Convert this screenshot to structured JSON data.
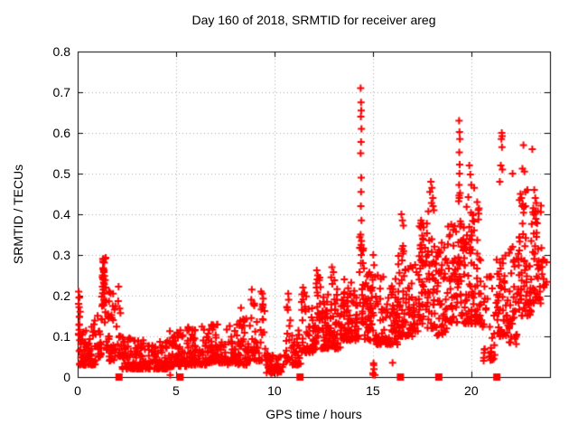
{
  "chart_data": {
    "type": "scatter",
    "title": "Day 160 of 2018, SRMTID for receiver areg",
    "xlabel": "GPS time / hours",
    "ylabel": "SRMTID / TECUs",
    "xlim": [
      0,
      24
    ],
    "ylim": [
      0,
      0.8
    ],
    "xticks": [
      0,
      5,
      10,
      15,
      20
    ],
    "xtick_labels": [
      "0",
      "5",
      "10",
      "15",
      "20"
    ],
    "yticks": [
      0,
      0.1,
      0.2,
      0.3,
      0.4,
      0.5,
      0.6,
      0.7,
      0.8
    ],
    "ytick_labels": [
      "0",
      "0.1",
      "0.2",
      "0.3",
      "0.4",
      "0.5",
      "0.6",
      "0.7",
      "0.8"
    ],
    "grid": "dotted",
    "grid_color": "#aaaaaa",
    "axis_color": "#000000",
    "legend": "none",
    "series": [
      {
        "name": "SRMTID",
        "marker": "plus",
        "color": "#ff0000",
        "notable_points": [
          [
            4.7,
            0.005
          ],
          [
            0.05,
            0.21
          ],
          [
            0.07,
            0.195
          ],
          [
            1.28,
            0.29
          ],
          [
            1.31,
            0.282
          ],
          [
            1.3,
            0.268
          ],
          [
            1.33,
            0.258
          ],
          [
            1.27,
            0.25
          ],
          [
            1.29,
            0.242
          ],
          [
            1.32,
            0.232
          ],
          [
            1.26,
            0.222
          ],
          [
            1.3,
            0.215
          ],
          [
            1.35,
            0.205
          ],
          [
            1.8,
            0.205
          ],
          [
            2.08,
            0.222
          ],
          [
            8.3,
            0.17
          ],
          [
            8.85,
            0.215
          ],
          [
            8.82,
            0.19
          ],
          [
            9.32,
            0.21
          ],
          [
            9.38,
            0.205
          ],
          [
            9.43,
            0.193
          ],
          [
            10.7,
            0.205
          ],
          [
            10.72,
            0.19
          ],
          [
            10.68,
            0.165
          ],
          [
            11.45,
            0.22
          ],
          [
            11.52,
            0.208
          ],
          [
            12.15,
            0.262
          ],
          [
            12.2,
            0.25
          ],
          [
            12.18,
            0.24
          ],
          [
            12.92,
            0.27
          ],
          [
            13.0,
            0.258
          ],
          [
            12.88,
            0.245
          ],
          [
            13.05,
            0.238
          ],
          [
            13.55,
            0.24
          ],
          [
            13.9,
            0.232
          ],
          [
            14.38,
            0.71
          ],
          [
            14.4,
            0.675
          ],
          [
            14.41,
            0.655
          ],
          [
            14.39,
            0.64
          ],
          [
            14.42,
            0.61
          ],
          [
            14.4,
            0.578
          ],
          [
            14.38,
            0.55
          ],
          [
            14.41,
            0.49
          ],
          [
            14.4,
            0.455
          ],
          [
            14.39,
            0.42
          ],
          [
            14.42,
            0.385
          ],
          [
            14.38,
            0.35
          ],
          [
            14.4,
            0.325
          ],
          [
            14.41,
            0.3
          ],
          [
            14.39,
            0.28
          ],
          [
            15.02,
            0.3
          ],
          [
            15.06,
            0.275
          ],
          [
            15.25,
            0.25
          ],
          [
            16.0,
            0.035
          ],
          [
            16.45,
            0.4
          ],
          [
            16.5,
            0.385
          ],
          [
            16.55,
            0.372
          ],
          [
            17.45,
            0.385
          ],
          [
            17.52,
            0.378
          ],
          [
            17.58,
            0.368
          ],
          [
            17.95,
            0.48
          ],
          [
            18.0,
            0.465
          ],
          [
            17.9,
            0.455
          ],
          [
            18.05,
            0.44
          ],
          [
            17.98,
            0.428
          ],
          [
            18.1,
            0.41
          ],
          [
            18.5,
            0.33
          ],
          [
            19.38,
            0.63
          ],
          [
            19.4,
            0.602
          ],
          [
            19.42,
            0.585
          ],
          [
            19.39,
            0.552
          ],
          [
            19.41,
            0.522
          ],
          [
            19.4,
            0.5
          ],
          [
            19.38,
            0.472
          ],
          [
            19.43,
            0.452
          ],
          [
            19.36,
            0.432
          ],
          [
            19.9,
            0.52
          ],
          [
            19.95,
            0.498
          ],
          [
            20.0,
            0.472
          ],
          [
            20.15,
            0.465
          ],
          [
            19.85,
            0.442
          ],
          [
            20.3,
            0.43
          ],
          [
            20.9,
            0.05
          ],
          [
            21.0,
            0.062
          ],
          [
            21.07,
            0.042
          ],
          [
            21.55,
            0.6
          ],
          [
            21.57,
            0.592
          ],
          [
            21.53,
            0.585
          ],
          [
            21.56,
            0.565
          ],
          [
            21.5,
            0.52
          ],
          [
            21.58,
            0.51
          ],
          [
            21.45,
            0.48
          ],
          [
            22.1,
            0.5
          ],
          [
            22.6,
            0.512
          ],
          [
            22.7,
            0.505
          ],
          [
            22.65,
            0.57
          ],
          [
            22.45,
            0.435
          ],
          [
            22.5,
            0.45
          ],
          [
            22.55,
            0.44
          ],
          [
            22.62,
            0.425
          ],
          [
            22.75,
            0.455
          ],
          [
            22.85,
            0.46
          ],
          [
            23.1,
            0.56
          ],
          [
            23.2,
            0.46
          ],
          [
            23.25,
            0.44
          ],
          [
            23.3,
            0.428
          ],
          [
            23.15,
            0.415
          ]
        ],
        "density_bands": [
          {
            "x0": 0.02,
            "x1": 0.15,
            "y_min": 0.08,
            "y_max": 0.205,
            "count": 14,
            "bias": 1.0
          },
          {
            "x0": 0.05,
            "x1": 1.0,
            "y_min": 0.03,
            "y_max": 0.15,
            "count": 70,
            "bias": 2.2
          },
          {
            "x0": 1.0,
            "x1": 1.2,
            "y_min": 0.05,
            "y_max": 0.18,
            "count": 18,
            "bias": 1.8
          },
          {
            "x0": 1.2,
            "x1": 1.45,
            "y_min": 0.13,
            "y_max": 0.295,
            "count": 28,
            "bias": 1.2
          },
          {
            "x0": 1.45,
            "x1": 2.0,
            "y_min": 0.04,
            "y_max": 0.21,
            "count": 40,
            "bias": 2.2
          },
          {
            "x0": 2.0,
            "x1": 2.25,
            "y_min": 0.05,
            "y_max": 0.2,
            "count": 14,
            "bias": 1.5
          },
          {
            "x0": 2.25,
            "x1": 3.2,
            "y_min": 0.02,
            "y_max": 0.1,
            "count": 75,
            "bias": 2.0
          },
          {
            "x0": 3.2,
            "x1": 4.6,
            "y_min": 0.02,
            "y_max": 0.095,
            "count": 95,
            "bias": 2.0
          },
          {
            "x0": 4.6,
            "x1": 5.6,
            "y_min": 0.025,
            "y_max": 0.115,
            "count": 70,
            "bias": 2.0
          },
          {
            "x0": 5.6,
            "x1": 6.6,
            "y_min": 0.03,
            "y_max": 0.125,
            "count": 70,
            "bias": 2.0
          },
          {
            "x0": 6.6,
            "x1": 7.6,
            "y_min": 0.035,
            "y_max": 0.13,
            "count": 70,
            "bias": 2.0
          },
          {
            "x0": 7.6,
            "x1": 8.6,
            "y_min": 0.03,
            "y_max": 0.145,
            "count": 70,
            "bias": 2.0
          },
          {
            "x0": 8.6,
            "x1": 9.6,
            "y_min": 0.04,
            "y_max": 0.185,
            "count": 55,
            "bias": 1.8
          },
          {
            "x0": 9.6,
            "x1": 10.6,
            "y_min": 0.01,
            "y_max": 0.06,
            "count": 55,
            "bias": 1.5
          },
          {
            "x0": 10.6,
            "x1": 10.85,
            "y_min": 0.04,
            "y_max": 0.185,
            "count": 12,
            "bias": 1.5
          },
          {
            "x0": 10.85,
            "x1": 11.35,
            "y_min": 0.03,
            "y_max": 0.12,
            "count": 30,
            "bias": 1.8
          },
          {
            "x0": 11.35,
            "x1": 11.65,
            "y_min": 0.06,
            "y_max": 0.21,
            "count": 20,
            "bias": 1.5
          },
          {
            "x0": 11.65,
            "x1": 12.1,
            "y_min": 0.06,
            "y_max": 0.17,
            "count": 35,
            "bias": 1.6
          },
          {
            "x0": 12.1,
            "x1": 12.35,
            "y_min": 0.09,
            "y_max": 0.25,
            "count": 20,
            "bias": 1.4
          },
          {
            "x0": 12.35,
            "x1": 13.35,
            "y_min": 0.07,
            "y_max": 0.23,
            "count": 90,
            "bias": 1.7
          },
          {
            "x0": 13.35,
            "x1": 14.3,
            "y_min": 0.09,
            "y_max": 0.22,
            "count": 85,
            "bias": 1.6
          },
          {
            "x0": 14.3,
            "x1": 14.55,
            "y_min": 0.13,
            "y_max": 0.35,
            "count": 22,
            "bias": 1.1
          },
          {
            "x0": 14.55,
            "x1": 15.05,
            "y_min": 0.09,
            "y_max": 0.26,
            "count": 45,
            "bias": 1.7
          },
          {
            "x0": 15.0,
            "x1": 15.2,
            "y_min": 0.005,
            "y_max": 0.035,
            "count": 6,
            "bias": 1.0
          },
          {
            "x0": 15.05,
            "x1": 16.25,
            "y_min": 0.08,
            "y_max": 0.25,
            "count": 90,
            "bias": 1.8
          },
          {
            "x0": 16.25,
            "x1": 16.75,
            "y_min": 0.1,
            "y_max": 0.36,
            "count": 45,
            "bias": 1.5
          },
          {
            "x0": 16.75,
            "x1": 17.35,
            "y_min": 0.1,
            "y_max": 0.3,
            "count": 45,
            "bias": 1.6
          },
          {
            "x0": 17.35,
            "x1": 17.75,
            "y_min": 0.13,
            "y_max": 0.39,
            "count": 40,
            "bias": 1.3
          },
          {
            "x0": 17.75,
            "x1": 18.25,
            "y_min": 0.12,
            "y_max": 0.42,
            "count": 40,
            "bias": 1.4
          },
          {
            "x0": 18.25,
            "x1": 18.75,
            "y_min": 0.1,
            "y_max": 0.33,
            "count": 40,
            "bias": 1.5
          },
          {
            "x0": 18.75,
            "x1": 19.3,
            "y_min": 0.13,
            "y_max": 0.38,
            "count": 45,
            "bias": 1.3
          },
          {
            "x0": 19.3,
            "x1": 19.55,
            "y_min": 0.15,
            "y_max": 0.45,
            "count": 25,
            "bias": 1.2
          },
          {
            "x0": 19.55,
            "x1": 20.55,
            "y_min": 0.13,
            "y_max": 0.42,
            "count": 95,
            "bias": 1.5
          },
          {
            "x0": 20.55,
            "x1": 21.25,
            "y_min": 0.04,
            "y_max": 0.25,
            "count": 30,
            "bias": 1.5
          },
          {
            "x0": 21.25,
            "x1": 21.85,
            "y_min": 0.1,
            "y_max": 0.3,
            "count": 45,
            "bias": 1.4
          },
          {
            "x0": 21.85,
            "x1": 22.35,
            "y_min": 0.08,
            "y_max": 0.33,
            "count": 35,
            "bias": 1.5
          },
          {
            "x0": 22.35,
            "x1": 23.05,
            "y_min": 0.15,
            "y_max": 0.42,
            "count": 60,
            "bias": 1.4
          },
          {
            "x0": 23.05,
            "x1": 23.55,
            "y_min": 0.18,
            "y_max": 0.44,
            "count": 40,
            "bias": 1.3
          },
          {
            "x0": 23.55,
            "x1": 23.85,
            "y_min": 0.22,
            "y_max": 0.32,
            "count": 12,
            "bias": 1.2
          }
        ]
      },
      {
        "name": "baseline-markers",
        "marker": "filled-square",
        "color": "#ff0000",
        "points": [
          [
            2.1,
            0
          ],
          [
            5.2,
            0
          ],
          [
            11.3,
            0
          ],
          [
            16.4,
            0
          ],
          [
            18.35,
            0
          ],
          [
            21.3,
            0
          ]
        ]
      }
    ]
  }
}
